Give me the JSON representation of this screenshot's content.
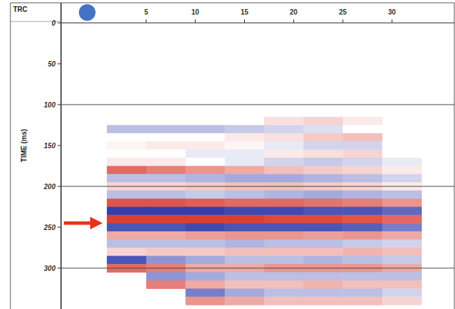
{
  "chart_data": {
    "type": "heatmap",
    "xlabel": "TRC",
    "ylabel": "TIME (ms)",
    "xlim": [
      -3.66,
      36.34
    ],
    "ylim": [
      0,
      350
    ],
    "xticks": [
      5,
      10,
      15,
      20,
      25,
      30
    ],
    "yticks": [
      0,
      50,
      100,
      150,
      200,
      250,
      300
    ],
    "grid": true,
    "zlim": [
      -1,
      1
    ],
    "colors": [
      "#1c2aa6",
      "#d42a1e"
    ],
    "x": [
      3,
      7,
      11,
      15,
      19,
      23,
      27,
      31
    ],
    "y": [
      120,
      130,
      140,
      150,
      160,
      170,
      180,
      190,
      200,
      210,
      220,
      230,
      240,
      250,
      260,
      270,
      280,
      290,
      300,
      310,
      320,
      330,
      340
    ],
    "values": [
      [
        null,
        0,
        0,
        0,
        0.15,
        0.2,
        0.1,
        null
      ],
      [
        -0.3,
        -0.3,
        -0.3,
        -0.25,
        -0.2,
        -0.15,
        0,
        null
      ],
      [
        0,
        0,
        0,
        0.1,
        0.15,
        0.25,
        0.3,
        null
      ],
      [
        0.05,
        0.1,
        0.1,
        0.05,
        -0.1,
        -0.2,
        -0.2,
        0
      ],
      [
        0,
        0,
        -0.1,
        -0.1,
        0.1,
        0.15,
        0.2,
        0
      ],
      [
        0.1,
        0.1,
        0,
        -0.1,
        -0.2,
        -0.25,
        -0.2,
        -0.1
      ],
      [
        0.7,
        0.6,
        0.5,
        0.4,
        0.3,
        0.25,
        0.2,
        0.1
      ],
      [
        -0.3,
        -0.3,
        -0.35,
        -0.4,
        -0.4,
        -0.35,
        -0.3,
        -0.2
      ],
      [
        0.2,
        0.2,
        0.25,
        0.3,
        0.3,
        0.25,
        0.2,
        0.1
      ],
      [
        -0.3,
        -0.3,
        -0.25,
        -0.3,
        -0.35,
        -0.4,
        -0.35,
        -0.3
      ],
      [
        0.8,
        0.8,
        0.75,
        0.7,
        0.7,
        0.65,
        0.6,
        0.5
      ],
      [
        -0.9,
        -0.9,
        -0.9,
        -0.85,
        -0.85,
        -0.8,
        -0.8,
        -0.7
      ],
      [
        0.9,
        0.9,
        0.9,
        0.9,
        0.85,
        0.85,
        0.8,
        0.7
      ],
      [
        -0.8,
        -0.8,
        -0.85,
        -0.8,
        -0.8,
        -0.8,
        -0.75,
        -0.6
      ],
      [
        0.4,
        0.4,
        0.45,
        0.5,
        0.5,
        0.45,
        0.5,
        0.4
      ],
      [
        -0.3,
        -0.3,
        -0.3,
        -0.35,
        -0.3,
        -0.3,
        -0.25,
        -0.2
      ],
      [
        0.2,
        0.25,
        0.25,
        0.3,
        0.3,
        0.3,
        0.35,
        0.3
      ],
      [
        -0.8,
        -0.5,
        -0.4,
        -0.3,
        -0.3,
        -0.35,
        -0.3,
        -0.25
      ],
      [
        0.7,
        0.6,
        0.4,
        0.4,
        0.5,
        0.5,
        0.5,
        0.4
      ],
      [
        null,
        -0.5,
        -0.4,
        -0.3,
        -0.3,
        -0.3,
        -0.3,
        -0.3
      ],
      [
        null,
        0.6,
        0.4,
        0.3,
        0.3,
        0.35,
        0.3,
        0.3
      ],
      [
        null,
        null,
        -0.6,
        -0.4,
        -0.3,
        -0.3,
        -0.3,
        -0.2
      ],
      [
        null,
        null,
        0.5,
        0.4,
        0.3,
        0.3,
        0.3,
        0.2
      ]
    ],
    "annotations": [
      {
        "marker": "arrow",
        "y": 245,
        "color": "#e8321e"
      },
      {
        "marker": "circle",
        "x": -1,
        "color": "#4472c4"
      }
    ]
  }
}
